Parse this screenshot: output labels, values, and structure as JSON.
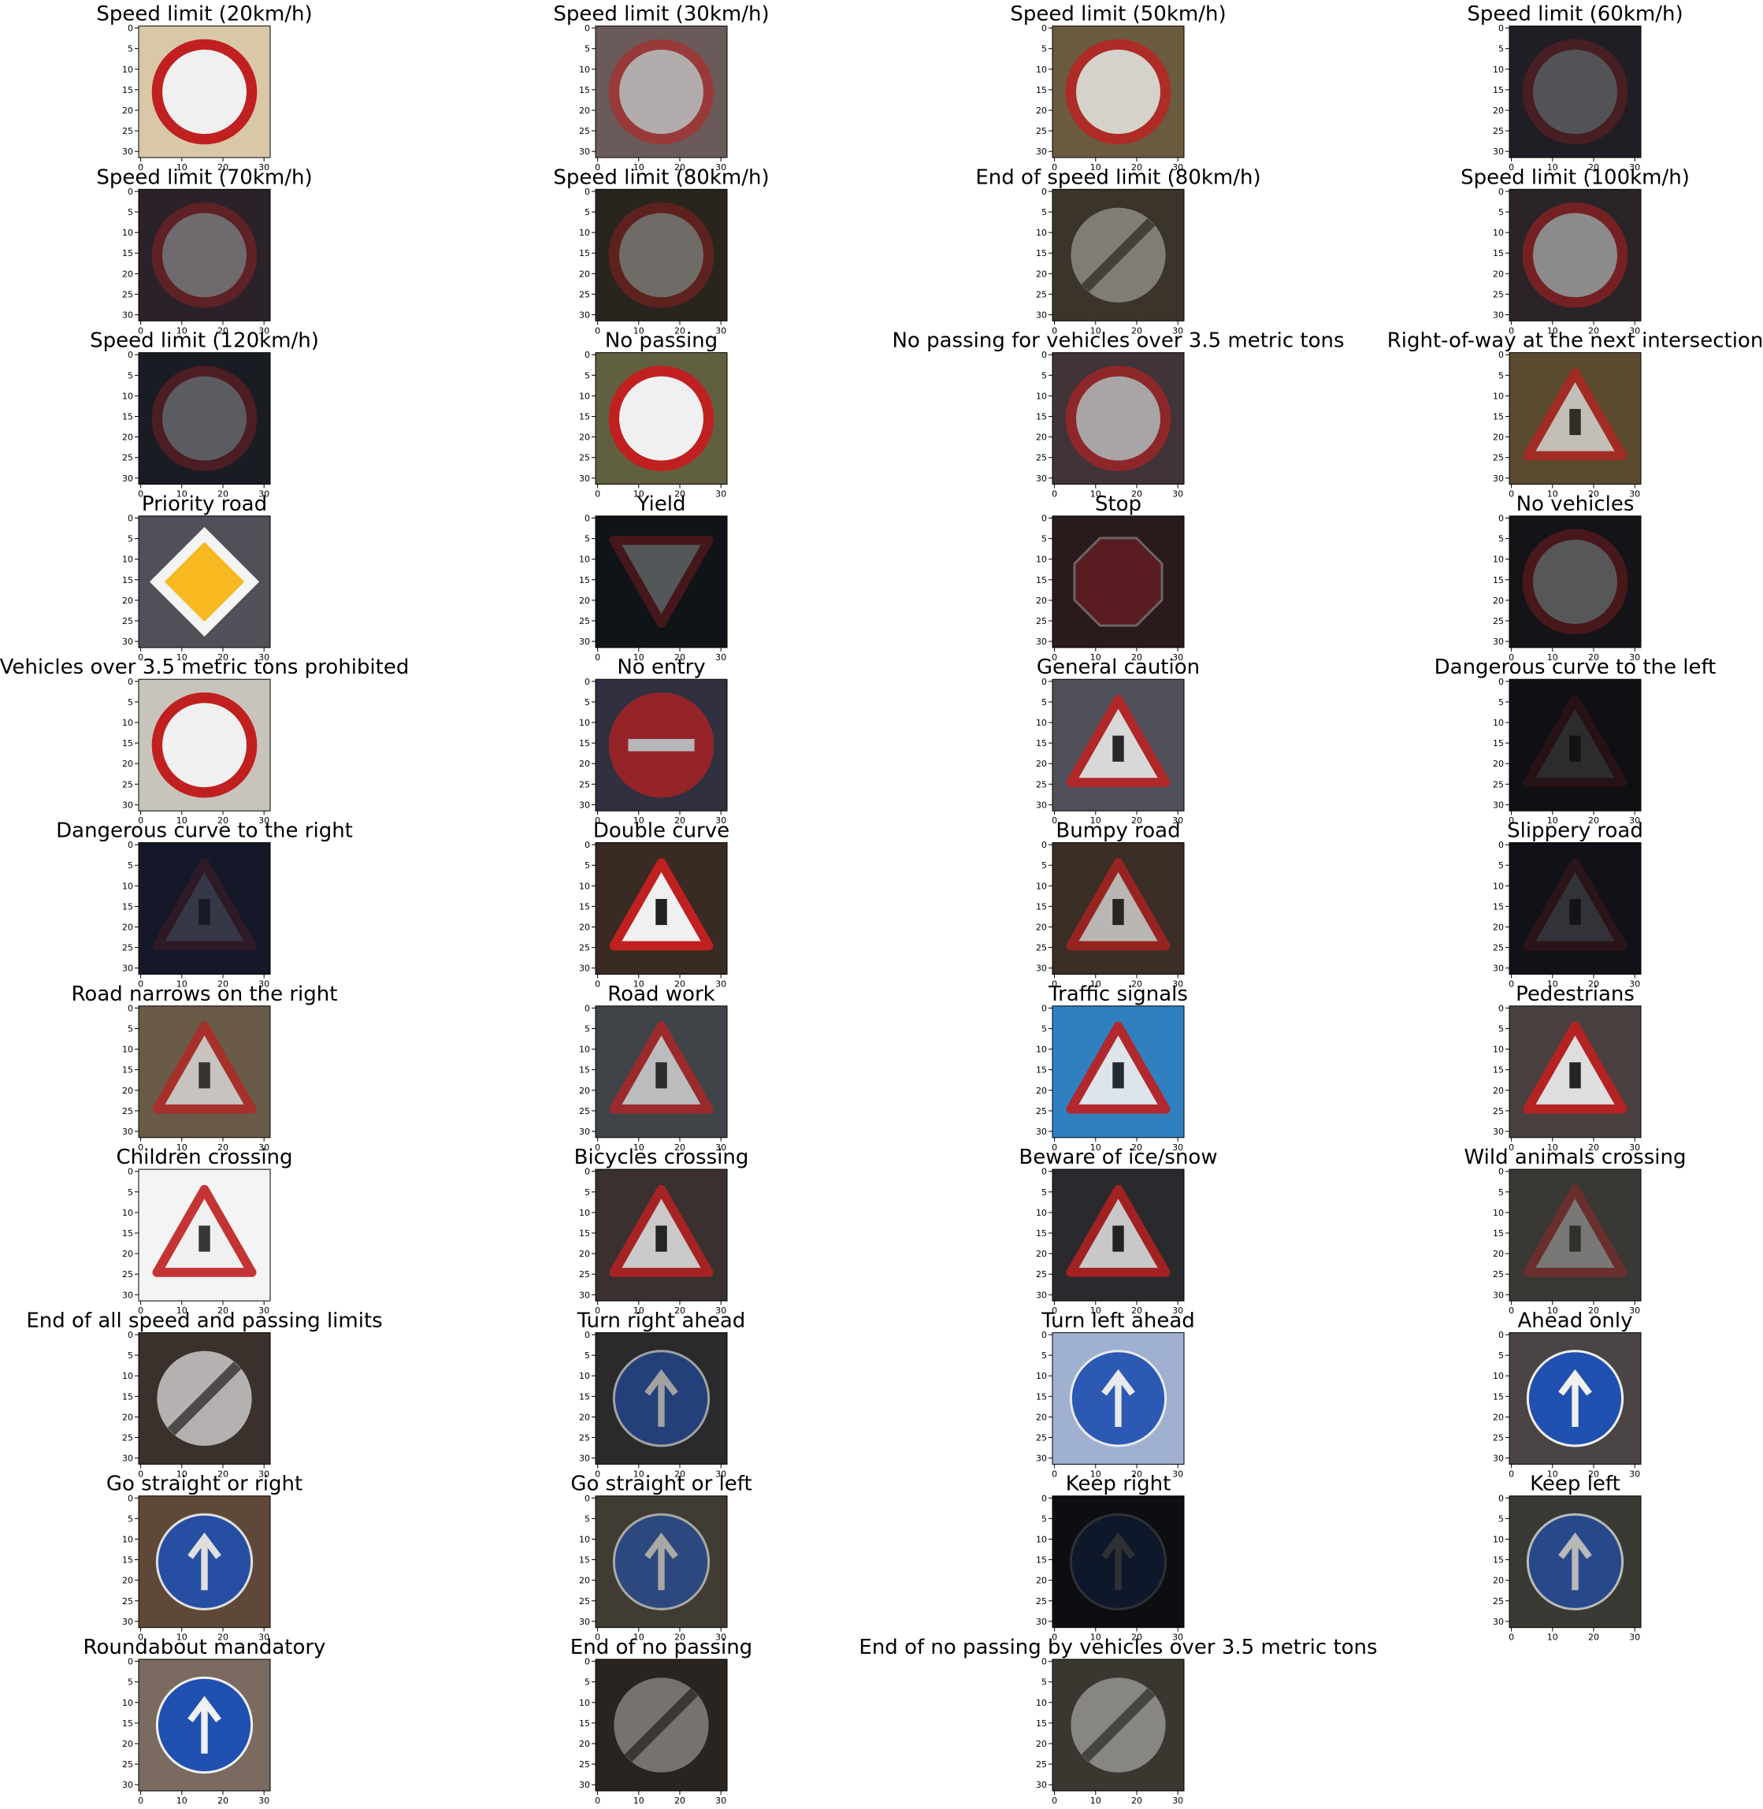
{
  "panels": [
    {
      "title": "Speed limit (20km/h)"
    },
    {
      "title": "Speed limit (30km/h)"
    },
    {
      "title": "Speed limit (50km/h)"
    },
    {
      "title": "Speed limit (60km/h)"
    },
    {
      "title": "Speed limit (70km/h)"
    },
    {
      "title": "Speed limit (80km/h)"
    },
    {
      "title": "End of speed limit (80km/h)"
    },
    {
      "title": "Speed limit (100km/h)"
    },
    {
      "title": "Speed limit (120km/h)"
    },
    {
      "title": "No passing"
    },
    {
      "title": "No passing for vehicles over 3.5 metric tons"
    },
    {
      "title": "Right-of-way at the next intersection"
    },
    {
      "title": "Priority road"
    },
    {
      "title": "Yield"
    },
    {
      "title": "Stop"
    },
    {
      "title": "No vehicles"
    },
    {
      "title": "Vehicles over 3.5 metric tons prohibited"
    },
    {
      "title": "No entry"
    },
    {
      "title": "General caution"
    },
    {
      "title": "Dangerous curve to the left"
    },
    {
      "title": "Dangerous curve to the right"
    },
    {
      "title": "Double curve"
    },
    {
      "title": "Bumpy road"
    },
    {
      "title": "Slippery road"
    },
    {
      "title": "Road narrows on the right"
    },
    {
      "title": "Road work"
    },
    {
      "title": "Traffic signals"
    },
    {
      "title": "Pedestrians"
    },
    {
      "title": "Children crossing"
    },
    {
      "title": "Bicycles crossing"
    },
    {
      "title": "Beware of ice/snow"
    },
    {
      "title": "Wild animals crossing"
    },
    {
      "title": "End of all speed and passing limits"
    },
    {
      "title": "Turn right ahead"
    },
    {
      "title": "Turn left ahead"
    },
    {
      "title": "Ahead only"
    },
    {
      "title": "Go straight or right"
    },
    {
      "title": "Go straight or left"
    },
    {
      "title": "Keep right"
    },
    {
      "title": "Keep left"
    },
    {
      "title": "Roundabout mandatory"
    },
    {
      "title": "End of no passing"
    },
    {
      "title": "End of no passing by vehicles over 3.5 metric tons"
    }
  ],
  "xlim": [
    -0.5,
    31.5
  ],
  "ylim": [
    31.5,
    -0.5
  ],
  "xticks": [
    0,
    10,
    20,
    30
  ],
  "yticks": [
    0,
    5,
    10,
    15,
    20,
    25,
    30
  ]
}
